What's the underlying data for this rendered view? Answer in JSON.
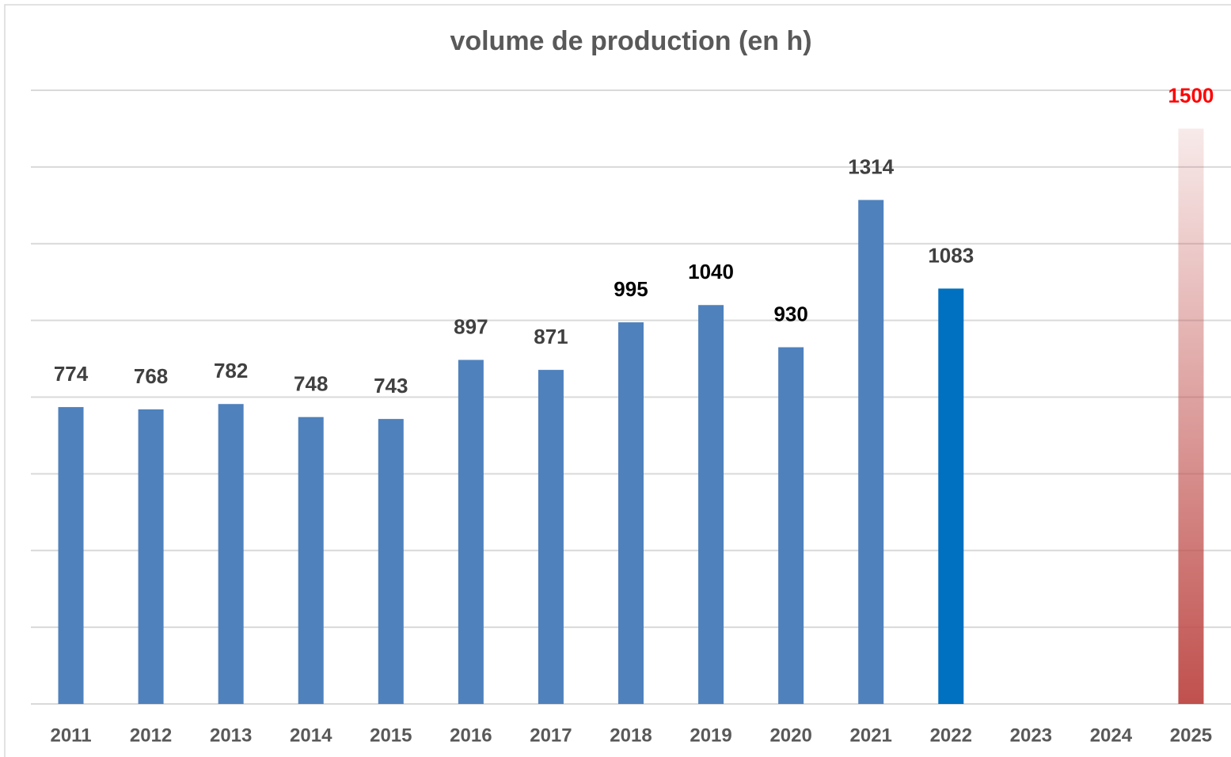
{
  "chart_data": {
    "type": "bar",
    "title": "volume de production (en h)",
    "categories": [
      "2011",
      "2012",
      "2013",
      "2014",
      "2015",
      "2016",
      "2017",
      "2018",
      "2019",
      "2020",
      "2021",
      "2022",
      "2023",
      "2024",
      "2025"
    ],
    "values": [
      774,
      768,
      782,
      748,
      743,
      897,
      871,
      995,
      1040,
      930,
      1314,
      1083,
      null,
      null,
      1500
    ],
    "colors": [
      "#4f81bd",
      "#4f81bd",
      "#4f81bd",
      "#4f81bd",
      "#4f81bd",
      "#4f81bd",
      "#4f81bd",
      "#4f81bd",
      "#4f81bd",
      "#4f81bd",
      "#4f81bd",
      "#0070c0",
      "#4f81bd",
      "#4f81bd",
      "#c0504d"
    ],
    "fade": [
      false,
      false,
      false,
      false,
      false,
      false,
      false,
      false,
      false,
      false,
      false,
      false,
      false,
      false,
      true
    ],
    "label_colors": [
      "#404040",
      "#404040",
      "#404040",
      "#404040",
      "#404040",
      "#404040",
      "#404040",
      "#000000",
      "#000000",
      "#000000",
      "#404040",
      "#404040",
      "#404040",
      "#404040",
      "#ff0000"
    ],
    "ylim": [
      0,
      1600
    ],
    "yticks": [
      0,
      200,
      400,
      600,
      800,
      1000,
      1200,
      1400,
      1600
    ],
    "grid": true
  }
}
